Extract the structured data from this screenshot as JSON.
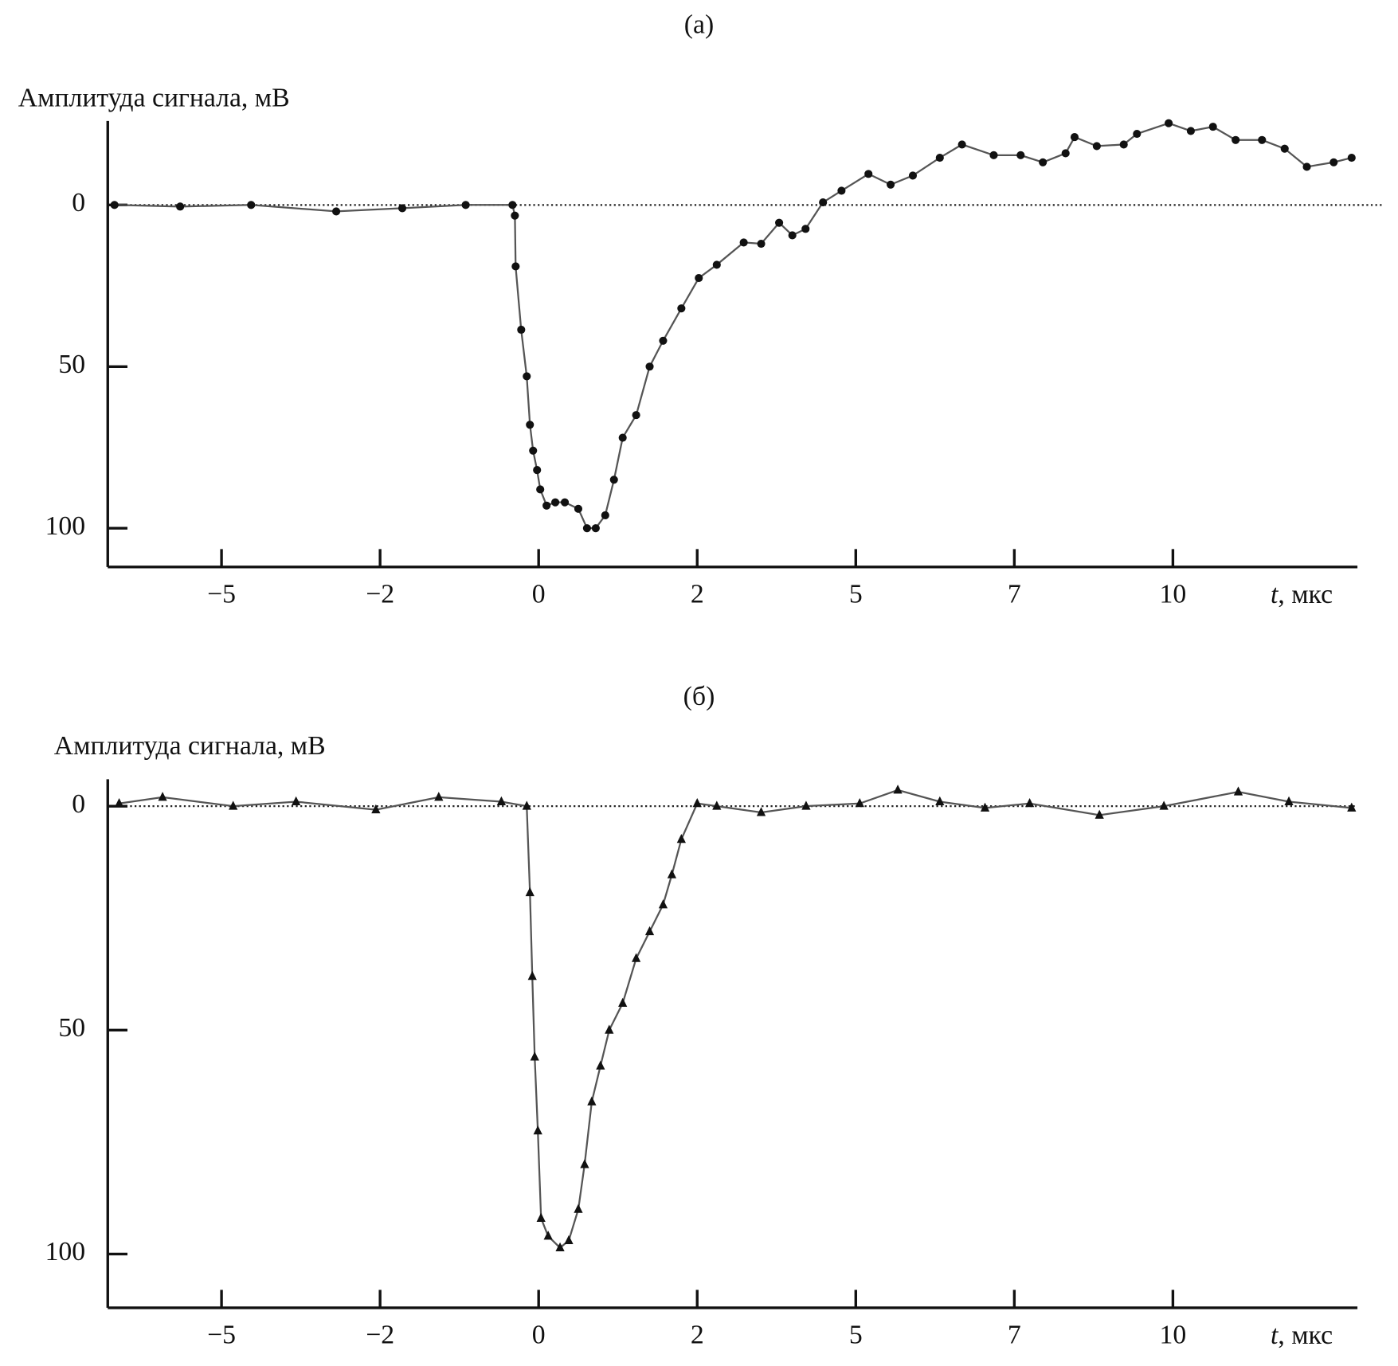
{
  "chart_data": [
    {
      "type": "line",
      "title": "(а)",
      "ylabel": "Амплитуда сигнала, мВ",
      "xlabel_symbol": "t",
      "xlabel": ", мкс",
      "xlim": [
        -7.2,
        13.5
      ],
      "xticks": [
        -5,
        -2,
        0,
        2,
        5,
        7,
        10
      ],
      "ylim": [
        112,
        -26
      ],
      "yticks": [
        0,
        50,
        100
      ],
      "hline": 0,
      "series": [
        {
          "marker": "circle",
          "color": "#111",
          "x": [
            -7.07,
            -5.8,
            -4.44,
            -2.83,
            -1.72,
            -0.92,
            -0.33,
            -0.3,
            -0.29,
            -0.22,
            -0.15,
            -0.11,
            -0.07,
            -0.02,
            0.02,
            0.1,
            0.21,
            0.33,
            0.5,
            0.61,
            0.72,
            0.84,
            0.95,
            1.06,
            1.23,
            1.4,
            1.57,
            1.8,
            2.03,
            2.37,
            2.88,
            3.21,
            3.55,
            3.8,
            4.05,
            4.38,
            4.73,
            5.16,
            5.44,
            5.72,
            6.06,
            6.34,
            6.74,
            7.12,
            7.54,
            7.97,
            8.14,
            8.56,
            9.07,
            9.32,
            9.92,
            10.34,
            10.76,
            11.19,
            11.69,
            12.12,
            12.54,
            13.05,
            13.39
          ],
          "values": [
            0,
            0.5,
            0,
            2,
            1,
            0,
            0,
            3.3,
            19,
            38.6,
            53,
            68,
            76,
            82,
            88,
            93,
            92,
            92,
            94,
            100,
            100,
            96,
            85,
            72,
            65,
            50,
            42,
            32,
            22.6,
            18.5,
            11.6,
            12,
            5.5,
            9.4,
            7.4,
            -0.8,
            -4.4,
            -9.6,
            -6.3,
            -9.1,
            -14.6,
            -18.7,
            -15.4,
            -15.4,
            -13.2,
            -16,
            -21,
            -18.2,
            -18.7,
            -22,
            -25.3,
            -22.9,
            -24.2,
            -20.1,
            -20.1,
            -17.4,
            -11.8,
            -13.2,
            -14.6
          ]
        }
      ]
    },
    {
      "type": "line",
      "title": "(б)",
      "ylabel": "Амплитуда сигнала, мВ",
      "xlabel_symbol": "t",
      "xlabel": ", мкс",
      "xlim": [
        -7.2,
        13.5
      ],
      "xticks": [
        -5,
        -2,
        0,
        2,
        5,
        7,
        10
      ],
      "ylim": [
        112,
        -6
      ],
      "yticks": [
        0,
        50,
        100
      ],
      "hline": 0,
      "series": [
        {
          "marker": "triangle",
          "color": "#111",
          "x": [
            -6.98,
            -6.14,
            -4.78,
            -3.59,
            -2.08,
            -1.26,
            -0.47,
            -0.15,
            -0.11,
            -0.08,
            -0.05,
            -0.01,
            0.03,
            0.12,
            0.27,
            0.38,
            0.5,
            0.58,
            0.67,
            0.78,
            0.89,
            1.06,
            1.23,
            1.4,
            1.57,
            1.68,
            1.8,
            2.0,
            2.37,
            3.21,
            4.06,
            5.05,
            5.53,
            6.06,
            6.63,
            7.29,
            8.61,
            9.83,
            11.24,
            12.2,
            13.39
          ],
          "values": [
            -0.6,
            -2,
            0,
            -1,
            0.8,
            -2,
            -1,
            0,
            19.3,
            38,
            56,
            72.5,
            92,
            96,
            98.6,
            97,
            90,
            80,
            66,
            58,
            50,
            44,
            34,
            28,
            22,
            15.3,
            7.4,
            -0.6,
            0,
            1.4,
            0,
            -0.6,
            -3.6,
            -1,
            0.4,
            -0.6,
            2,
            0,
            -3.2,
            -1,
            0.4
          ]
        }
      ]
    }
  ]
}
